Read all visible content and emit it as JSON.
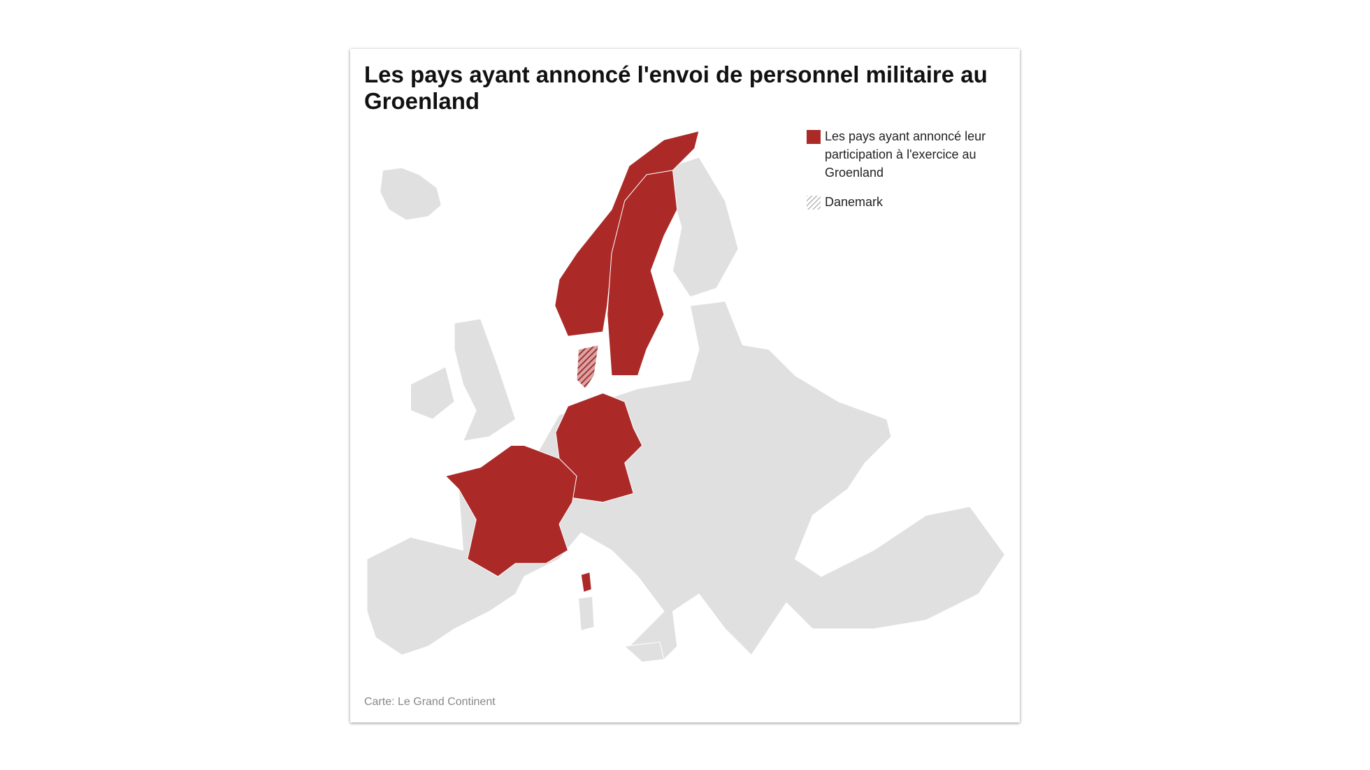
{
  "header": {
    "title": "Les pays ayant annoncé l'envoi de personnel militaire au Groenland"
  },
  "legend": {
    "items": [
      {
        "label": "Les pays ayant annoncé leur participation à l'exercice au Groenland"
      },
      {
        "label": "Danemark"
      }
    ]
  },
  "footer": {
    "source": "Carte: Le Grand Continent"
  }
}
